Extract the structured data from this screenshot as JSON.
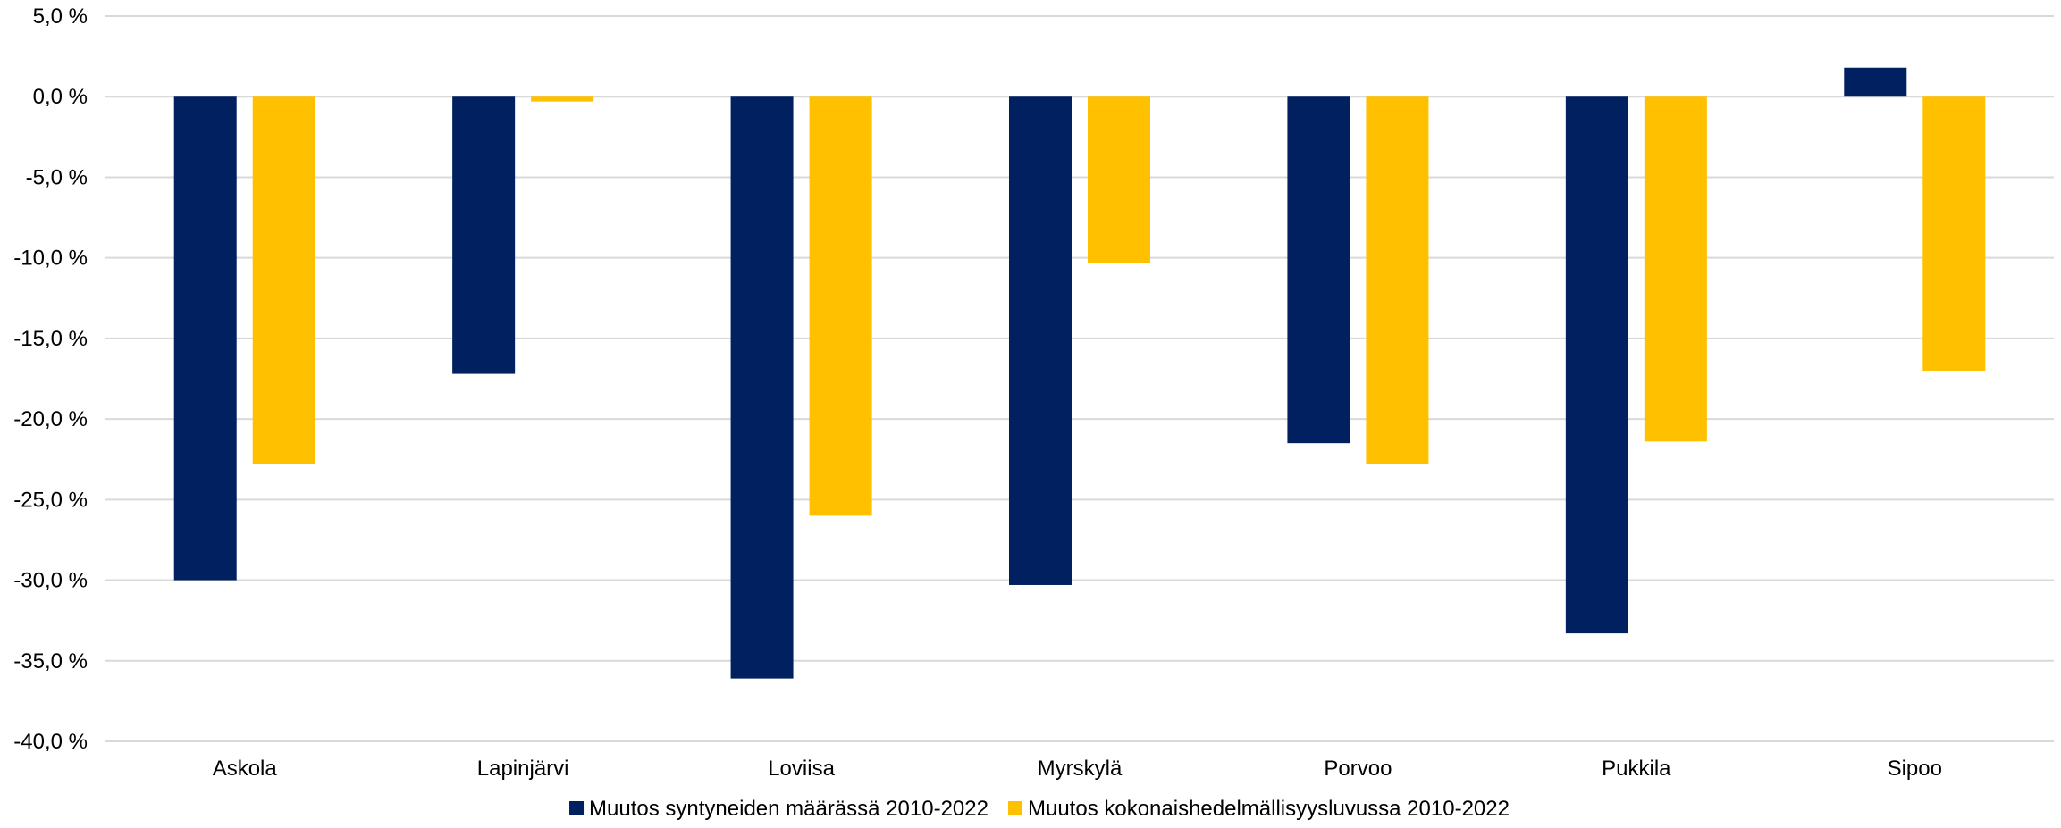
{
  "chart_data": {
    "type": "bar",
    "title": "",
    "xlabel": "",
    "ylabel": "",
    "categories": [
      "Askola",
      "Lapinjärvi",
      "Loviisa",
      "Myrskylä",
      "Porvoo",
      "Pukkila",
      "Sipoo"
    ],
    "series": [
      {
        "name": "Muutos syntyneiden määrässä 2010-2022",
        "color": "#002060",
        "values": [
          -30.0,
          -17.2,
          -36.1,
          -30.3,
          -21.5,
          -33.3,
          1.8
        ]
      },
      {
        "name": "Muutos kokonaishedelmällisyysluvussa 2010-2022",
        "color": "#FFC000",
        "values": [
          -22.8,
          -0.3,
          -26.0,
          -10.3,
          -22.8,
          -21.4,
          -17.0
        ]
      }
    ],
    "ylim": [
      -40,
      5
    ],
    "yticks": [
      5,
      0,
      -5,
      -10,
      -15,
      -20,
      -25,
      -30,
      -35,
      -40
    ],
    "ytick_labels": [
      "5,0 %",
      "0,0 %",
      "-5,0 %",
      "-10,0 %",
      "-15,0 %",
      "-20,0 %",
      "-25,0 %",
      "-30,0 %",
      "-35,0 %",
      "-40,0 %"
    ],
    "grid": true,
    "gridline_color": "#d9d9d9",
    "legend_position": "bottom"
  }
}
